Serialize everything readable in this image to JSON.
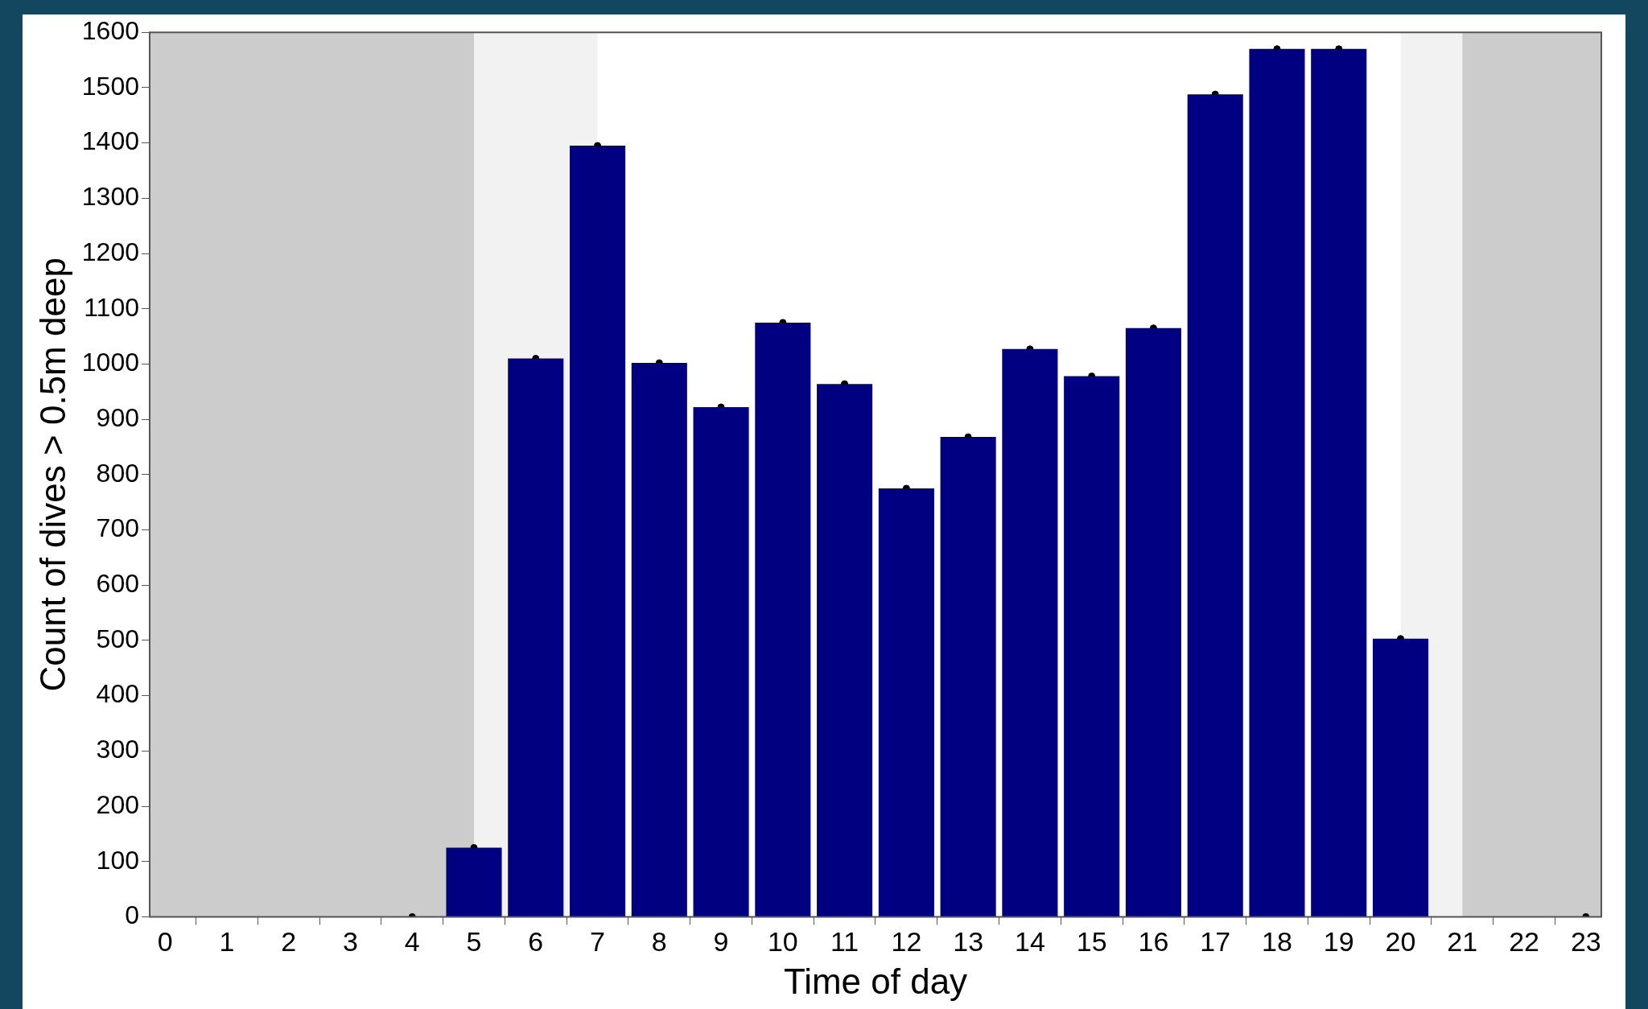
{
  "chart_data": {
    "type": "bar",
    "xlabel": "Time of day",
    "ylabel": "Count of dives > 0.5m deep",
    "series": [
      {
        "color": "#000080",
        "x": [
          4,
          5,
          6,
          7,
          8,
          9,
          10,
          11,
          12,
          13,
          14,
          15,
          16,
          17,
          18,
          19,
          20,
          23
        ],
        "values": [
          0,
          125,
          1010,
          1395,
          1002,
          922,
          1075,
          964,
          775,
          868,
          1027,
          978,
          1065,
          1488,
          1570,
          1570,
          503,
          0
        ]
      },
      {
        "type": "scatter",
        "color": "#000000",
        "marker": "circle",
        "x": [
          4,
          5,
          6,
          7,
          8,
          9,
          10,
          11,
          12,
          13,
          14,
          15,
          16,
          17,
          18,
          19,
          20,
          23
        ],
        "values": [
          0,
          125,
          1010,
          1395,
          1002,
          922,
          1075,
          964,
          775,
          868,
          1027,
          978,
          1065,
          1488,
          1570,
          1570,
          503,
          0
        ]
      }
    ],
    "xlim": [
      -0.25,
      23.25
    ],
    "xticks": [
      0,
      1,
      2,
      3,
      4,
      5,
      6,
      7,
      8,
      9,
      10,
      11,
      12,
      13,
      14,
      15,
      16,
      17,
      18,
      19,
      20,
      21,
      22,
      23
    ],
    "ylim": [
      0,
      1600
    ],
    "yticks": [
      0,
      100,
      200,
      300,
      400,
      500,
      600,
      700,
      800,
      900,
      1000,
      1100,
      1200,
      1300,
      1400,
      1500,
      1600
    ],
    "bands": [
      {
        "axis": "x",
        "from": -0.25,
        "to": 5,
        "color": "#cccccc"
      },
      {
        "axis": "x",
        "from": 5,
        "to": 7,
        "color": "#f2f2f2"
      },
      {
        "axis": "x",
        "from": 20,
        "to": 21,
        "color": "#f2f2f2"
      },
      {
        "axis": "x",
        "from": 21,
        "to": 23.25,
        "color": "#cccccc"
      }
    ],
    "grid": false,
    "legend": false
  }
}
